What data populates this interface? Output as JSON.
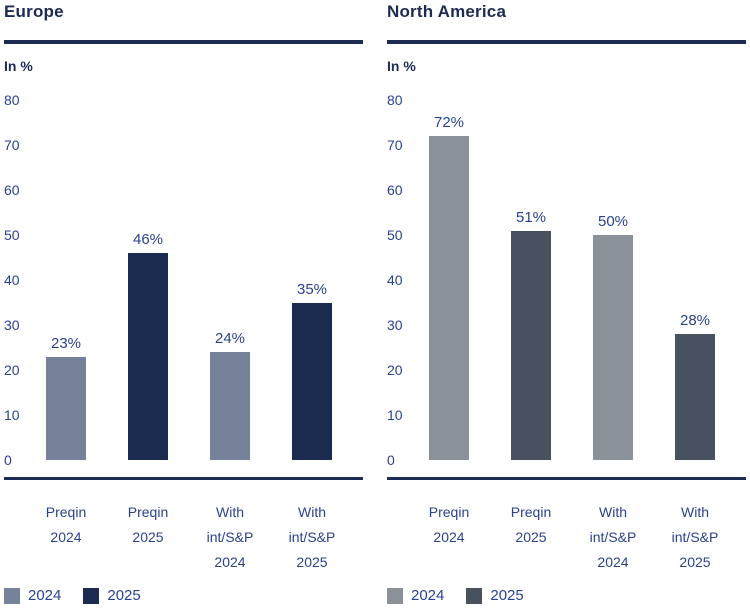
{
  "chart_data": [
    {
      "type": "bar",
      "title": "Europe",
      "ylabel": "In %",
      "ylim": [
        0,
        80
      ],
      "yticks": [
        "80",
        "70",
        "60",
        "50",
        "40",
        "30",
        "20",
        "10",
        "0"
      ],
      "grid": false,
      "legend_position": "bottom-left",
      "categories": [
        "Preqin 2024",
        "Preqin 2025",
        "With int/S&P 2024",
        "With int/S&P 2025"
      ],
      "series": [
        {
          "name": "2024",
          "values": [
            23,
            null,
            24,
            null
          ]
        },
        {
          "name": "2025",
          "values": [
            null,
            46,
            null,
            35
          ]
        }
      ],
      "bars": [
        {
          "category": "Preqin 2024",
          "series": "2024",
          "value": 23,
          "label": "23%",
          "color": "#76819a",
          "cat_lines": [
            "Preqin",
            "2024"
          ]
        },
        {
          "category": "Preqin 2025",
          "series": "2025",
          "value": 46,
          "label": "46%",
          "color": "#1b2b50",
          "cat_lines": [
            "Preqin",
            "2025"
          ]
        },
        {
          "category": "With int/S&P 2024",
          "series": "2024",
          "value": 24,
          "label": "24%",
          "color": "#76819a",
          "cat_lines": [
            "With",
            "int/S&P",
            "2024"
          ]
        },
        {
          "category": "With int/S&P 2025",
          "series": "2025",
          "value": 35,
          "label": "35%",
          "color": "#1b2b50",
          "cat_lines": [
            "With",
            "int/S&P",
            "2025"
          ]
        }
      ],
      "legend": [
        {
          "label": "2024",
          "color": "#76819a"
        },
        {
          "label": "2025",
          "color": "#1b2b50"
        }
      ]
    },
    {
      "type": "bar",
      "title": "North America",
      "ylabel": "In %",
      "ylim": [
        0,
        80
      ],
      "yticks": [
        "80",
        "70",
        "60",
        "50",
        "40",
        "30",
        "20",
        "10",
        "0"
      ],
      "grid": false,
      "legend_position": "bottom-left",
      "categories": [
        "Preqin 2024",
        "Preqin 2025",
        "With int/S&P 2024",
        "With int/S&P 2025"
      ],
      "series": [
        {
          "name": "2024",
          "values": [
            72,
            null,
            50,
            null
          ]
        },
        {
          "name": "2025",
          "values": [
            null,
            51,
            null,
            28
          ]
        }
      ],
      "bars": [
        {
          "category": "Preqin 2024",
          "series": "2024",
          "value": 72,
          "label": "72%",
          "color": "#8b9199",
          "cat_lines": [
            "Preqin",
            "2024"
          ]
        },
        {
          "category": "Preqin 2025",
          "series": "2025",
          "value": 51,
          "label": "51%",
          "color": "#48515f",
          "cat_lines": [
            "Preqin",
            "2025"
          ]
        },
        {
          "category": "With int/S&P 2024",
          "series": "2024",
          "value": 50,
          "label": "50%",
          "color": "#8b9199",
          "cat_lines": [
            "With",
            "int/S&P",
            "2024"
          ]
        },
        {
          "category": "With int/S&P 2025",
          "series": "2025",
          "value": 28,
          "label": "28%",
          "color": "#48515f",
          "cat_lines": [
            "With",
            "int/S&P",
            "2025"
          ]
        }
      ],
      "legend": [
        {
          "label": "2024",
          "color": "#8b9199"
        },
        {
          "label": "2025",
          "color": "#48515f"
        }
      ]
    }
  ],
  "colors": {
    "navy": "#1b2b52",
    "text_blue": "#2a4291",
    "background": "#ffffff"
  }
}
